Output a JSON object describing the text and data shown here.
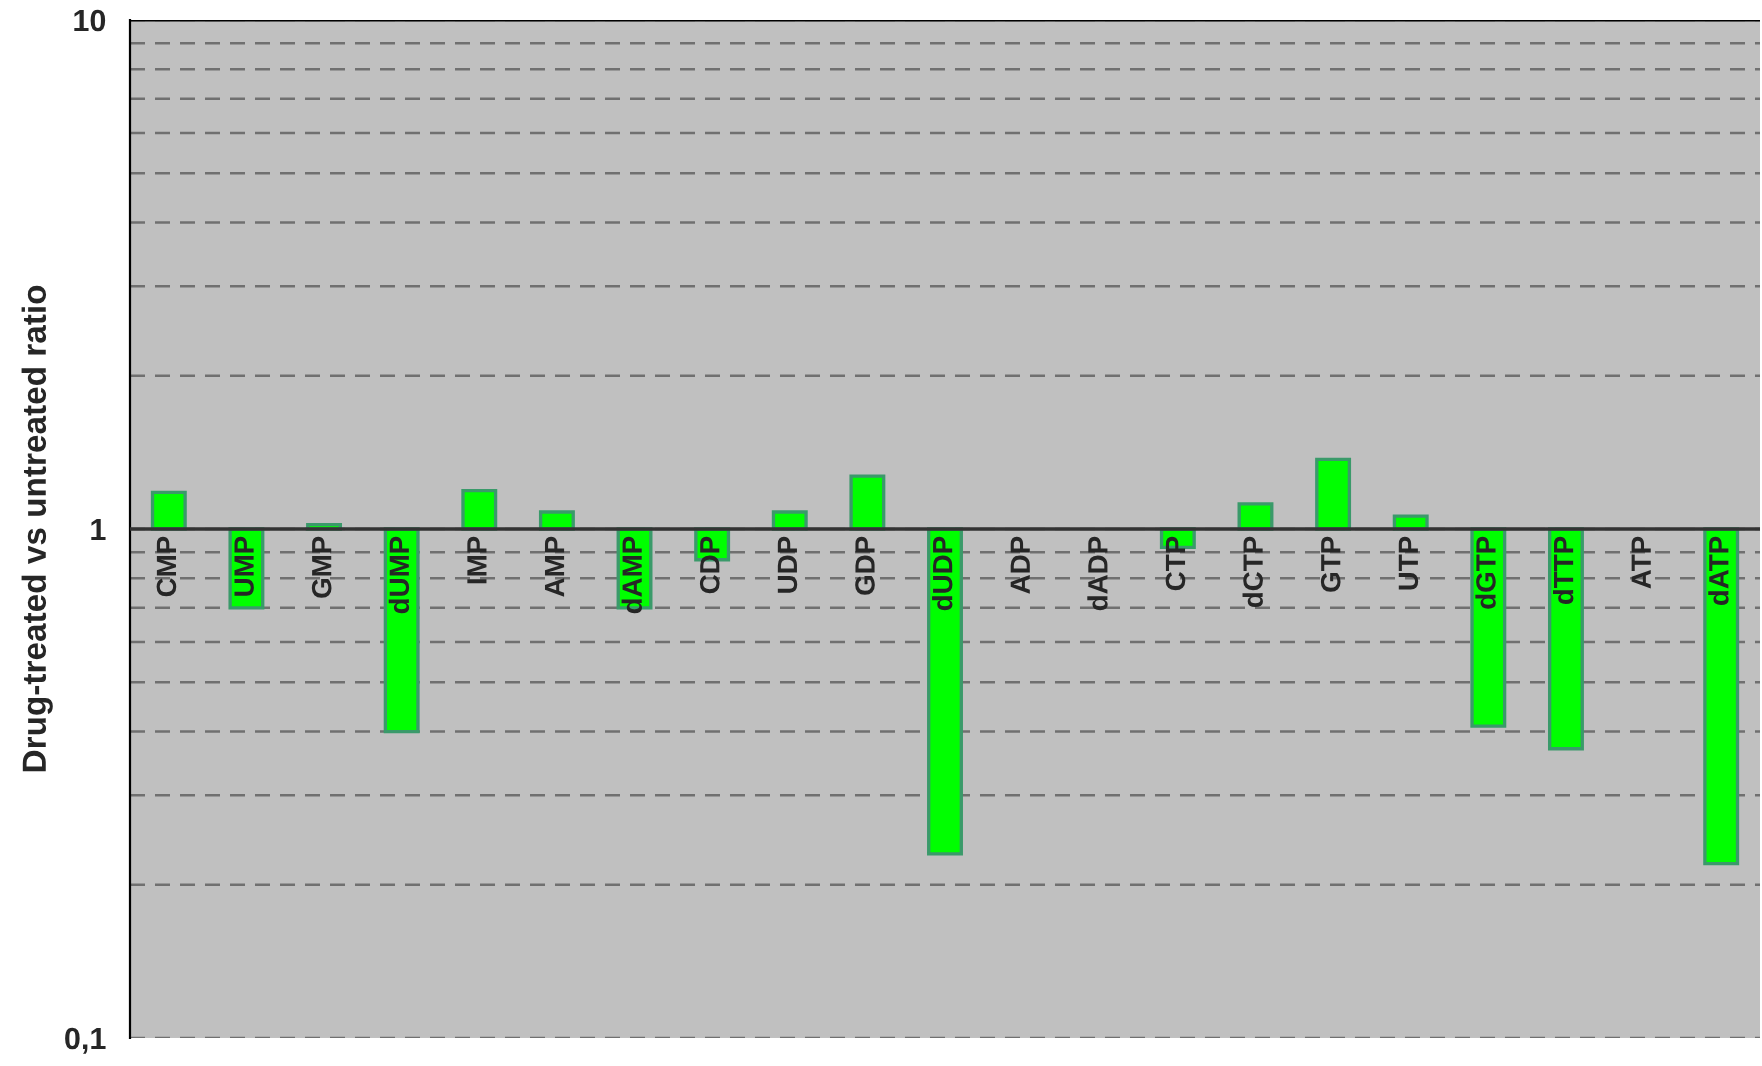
{
  "chart_data": {
    "type": "bar",
    "ylabel": "Drug-treated vs untreated ratio",
    "categories": [
      "CMP",
      "UMP",
      "GMP",
      "dUMP",
      "IMP",
      "AMP",
      "dAMP",
      "CDP",
      "UDP",
      "GDP",
      "dUDP",
      "ADP",
      "dADP",
      "CTP",
      "dCTP",
      "GTP",
      "UTP",
      "dGTP",
      "dTTP",
      "ATP",
      "dATP"
    ],
    "values": [
      0.18,
      -0.3,
      0.02,
      -0.6,
      0.19,
      0.08,
      -0.3,
      -0.13,
      0.08,
      0.27,
      -0.77,
      null,
      null,
      -0.08,
      0.12,
      0.37,
      0.06,
      -0.59,
      -0.63,
      null,
      -0.78
    ],
    "base": [
      1,
      1,
      1,
      1,
      1,
      1,
      1,
      1,
      1,
      1,
      1,
      null,
      null,
      1,
      1,
      1,
      1,
      1,
      1,
      null,
      1
    ],
    "color": "#00ff00",
    "log": true,
    "ylim": [
      0.1,
      10
    ],
    "yticks": [
      {
        "value": 0.1,
        "label": "0,1"
      },
      1,
      10
    ],
    "grid": true
  }
}
